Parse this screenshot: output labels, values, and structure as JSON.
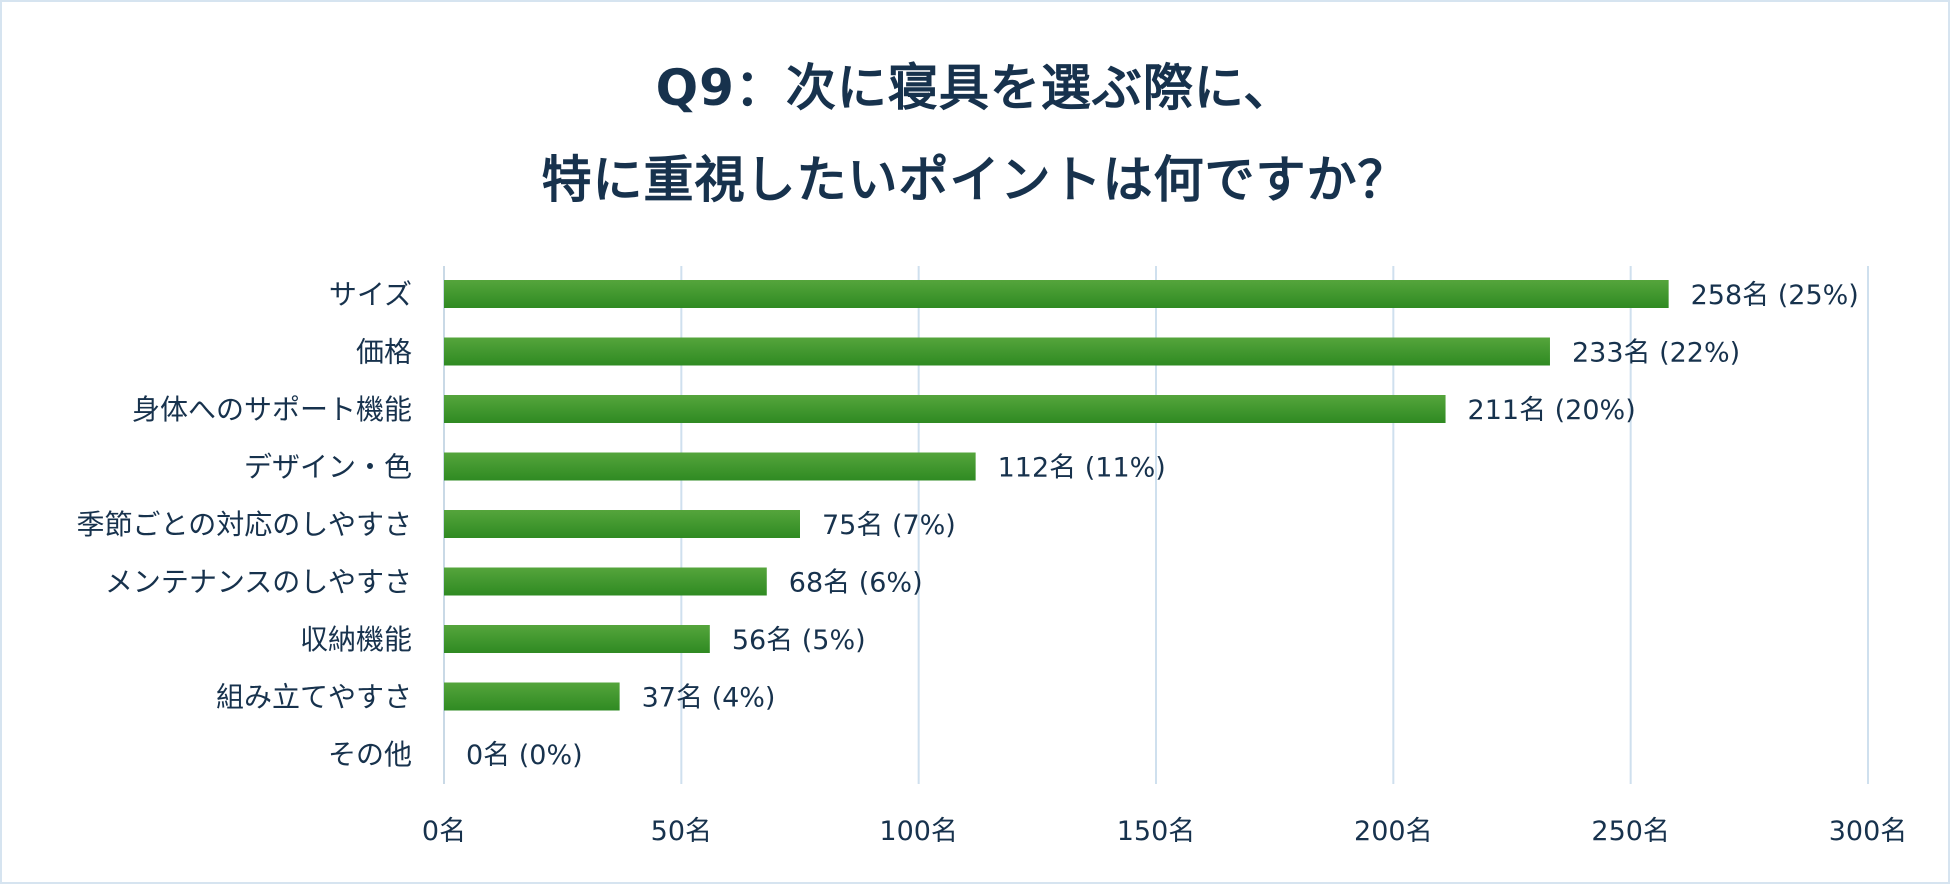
{
  "chart_data": {
    "type": "bar",
    "orientation": "horizontal",
    "title_lines": [
      "Q9：次に寝具を選ぶ際に、",
      "特に重視したいポイントは何ですか？"
    ],
    "categories": [
      "サイズ",
      "価格",
      "身体へのサポート機能",
      "デザイン・色",
      "季節ごとの対応のしやすさ",
      "メンテナンスのしやすさ",
      "収納機能",
      "組み立てやすさ",
      "その他"
    ],
    "values": [
      258,
      233,
      211,
      112,
      75,
      68,
      56,
      37,
      0
    ],
    "data_labels": [
      "258名 (25%)",
      "233名 (22%)",
      "211名 (20%)",
      "112名 (11%)",
      "75名 (7%)",
      "68名 (6%)",
      "56名 (5%)",
      "37名 (4%)",
      "0名 (0%)"
    ],
    "xlim": [
      0,
      300
    ],
    "x_ticks": [
      0,
      50,
      100,
      150,
      200,
      250,
      300
    ],
    "x_tick_labels": [
      "0名",
      "50名",
      "100名",
      "150名",
      "200名",
      "250名",
      "300名"
    ],
    "grid": true,
    "legend": "none",
    "colors": {
      "bar_top": "#55a53c",
      "bar_bottom": "#2f8a22",
      "grid": "#cfe0ee",
      "axis": "#c9d9e6",
      "text": "#17324d",
      "title": "#17324d",
      "frame": "#d6e4f0"
    }
  }
}
